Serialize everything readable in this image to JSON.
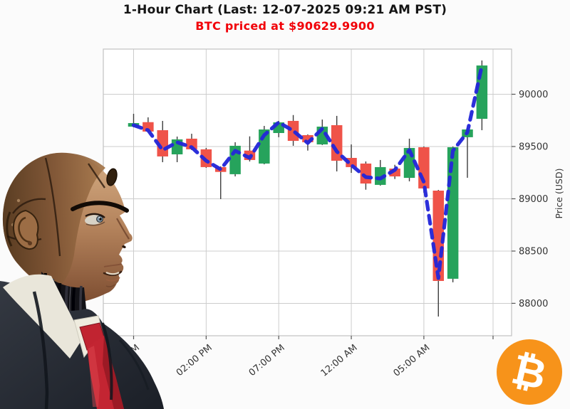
{
  "header": {
    "title": "1-Hour Chart (Last: 12-07-2025 09:21 AM PST)",
    "subtitle": "BTC priced at $90629.9900",
    "title_color": "#141414",
    "subtitle_color": "#f10108"
  },
  "chart_data": {
    "type": "candlestick",
    "title": "1-Hour Chart (Last: 12-07-2025 09:21 AM PST)",
    "subtitle": "BTC priced at $90629.9900",
    "last_price": "90629.9900",
    "last_timestamp": "12-07-2025 09:21 AM PST",
    "interval": "1 hour",
    "ylabel": "Price (USD)",
    "y_ticks": [
      88000,
      88500,
      89000,
      89500,
      90000
    ],
    "ylim": [
      87690,
      90432
    ],
    "grid": true,
    "x_tick_labels": [
      "09:00 AM",
      "02:00 PM",
      "07:00 PM",
      "12:00 AM",
      "05:00 AM"
    ],
    "x_tick_candle_indices": [
      0,
      5,
      10,
      15,
      20
    ],
    "times": [
      "09:00 AM",
      "10:00 AM",
      "11:00 AM",
      "12:00 PM",
      "01:00 PM",
      "02:00 PM",
      "03:00 PM",
      "04:00 PM",
      "05:00 PM",
      "06:00 PM",
      "07:00 PM",
      "08:00 PM",
      "09:00 PM",
      "10:00 PM",
      "11:00 PM",
      "12:00 AM",
      "01:00 AM",
      "02:00 AM",
      "03:00 AM",
      "04:00 AM",
      "05:00 AM",
      "06:00 AM",
      "07:00 AM",
      "08:00 AM",
      "09:00 AM"
    ],
    "series": [
      {
        "name": "BTC 1-hour OHLC",
        "type": "candlestick",
        "open": [
          89690,
          89733,
          89656,
          89425,
          89575,
          89473,
          89303,
          89235,
          89461,
          89337,
          89629,
          89745,
          89609,
          89520,
          89704,
          89391,
          89337,
          89133,
          89289,
          89200,
          89493,
          89078,
          88235,
          89589,
          89765
        ],
        "high": [
          89813,
          89779,
          89745,
          89595,
          89622,
          89486,
          89310,
          89541,
          89597,
          89697,
          89745,
          89801,
          89616,
          89758,
          89793,
          89520,
          89357,
          89371,
          89325,
          89575,
          89500,
          89085,
          89500,
          89677,
          90323
        ],
        "low": [
          89684,
          89636,
          89350,
          89350,
          89466,
          89296,
          88997,
          89214,
          89357,
          89330,
          89589,
          89507,
          89461,
          89514,
          89262,
          89248,
          89087,
          89126,
          89189,
          89167,
          89058,
          87874,
          88201,
          89201,
          89656
        ],
        "close": [
          89724,
          89643,
          89405,
          89568,
          89473,
          89303,
          89257,
          89507,
          89371,
          89663,
          89731,
          89554,
          89541,
          89690,
          89364,
          89303,
          89146,
          89303,
          89214,
          89486,
          89099,
          88214,
          89493,
          89663,
          90275
        ]
      },
      {
        "name": "moving average",
        "type": "line",
        "style": "dashed",
        "values": [
          89704,
          89656,
          89466,
          89541,
          89493,
          89364,
          89282,
          89459,
          89391,
          89609,
          89731,
          89650,
          89534,
          89670,
          89452,
          89323,
          89207,
          89194,
          89276,
          89466,
          89160,
          88241,
          89459,
          89636,
          90275
        ]
      }
    ],
    "colors": {
      "up": "#26a35c",
      "down": "#ef5349",
      "ma": "#2326d8",
      "grid": "#cccccc",
      "spine": "#c2c2c2",
      "wick": "#3d3d3d",
      "axis_text": "#333333",
      "plot_bg": "#ffffff"
    }
  },
  "branding": {
    "bitcoin_symbol": "₿",
    "bitcoin_orange": "#f7931a"
  }
}
